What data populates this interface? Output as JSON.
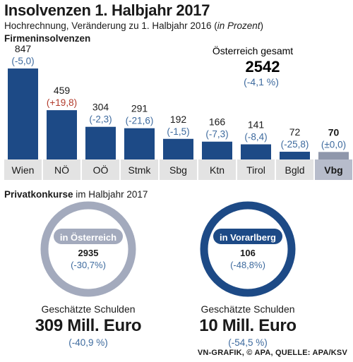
{
  "header": {
    "title": "Insolvenzen 1. Halbjahr 2017",
    "subtitle_main": "Hochrechnung, Veränderung zu 1. Halbjahr  2016 (",
    "subtitle_italic": "in Prozent",
    "subtitle_end": ")"
  },
  "firmen": {
    "label": "Firmeninsolvenzen",
    "total_label": "Österreich gesamt",
    "total_value": "2542",
    "total_change": "(-4,1 %)"
  },
  "chart_data": {
    "type": "bar",
    "categories": [
      "Wien",
      "NÖ",
      "OÖ",
      "Stmk",
      "Sbg",
      "Ktn",
      "Tirol",
      "Bgld",
      "Vbg"
    ],
    "values": [
      847,
      459,
      304,
      291,
      192,
      166,
      141,
      72,
      70
    ],
    "value_labels": [
      "847",
      "459",
      "304",
      "291",
      "192",
      "166",
      "141",
      "72",
      "70"
    ],
    "change_labels": [
      "(-5,0)",
      "(+19,8)",
      "(-2,3)",
      "(-21,6)",
      "(-1,5)",
      "(-7,3)",
      "(-8,4)",
      "(-25,8)",
      "(±0,0)"
    ],
    "changes": [
      -5.0,
      19.8,
      -2.3,
      -21.6,
      -1.5,
      -7.3,
      -8.4,
      -25.8,
      0.0
    ],
    "highlight_category": "Vbg",
    "ylim": [
      0,
      900
    ],
    "colors": {
      "bar": "#1d4a86",
      "bar_highlight": "#8f97ab",
      "change_negative": "#3d6a9e",
      "change_positive": "#b23a2a",
      "label_bg": "#e3e3e3",
      "label_bg_highlight": "#b7bccb"
    }
  },
  "privat": {
    "label_bold": "Privatkonkurse",
    "label_rest": " im Halbjahr 2017",
    "austria": {
      "ring_label": "in Österreich",
      "value": "2935",
      "change": "(-30,7%)",
      "ring_color": "#a3aabd",
      "pill_color": "#a3aabd",
      "debt_label": "Geschätzte Schulden",
      "debt_value": "309 Mill. Euro",
      "debt_change": "(-40,9 %)"
    },
    "vorarlberg": {
      "ring_label": "in Vorarlberg",
      "value": "106",
      "change": "(-48,8%)",
      "ring_color": "#1d4a86",
      "pill_color": "#1d4a86",
      "debt_label": "Geschätzte Schulden",
      "debt_value": "10 Mill. Euro",
      "debt_change": "(-54,5 %)"
    }
  },
  "footer": "VN-GRAFIK, © APA, QUELLE: APA/KSV"
}
